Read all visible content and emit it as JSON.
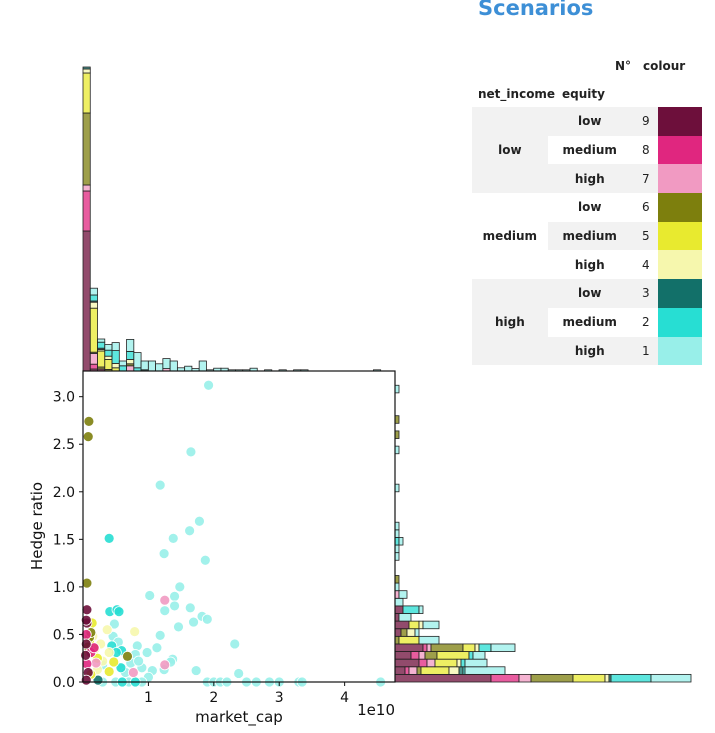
{
  "legend": {
    "title": "Scenarios",
    "header": {
      "n": "N°",
      "colour": "colour",
      "net_income": "net_income",
      "equity": "equity"
    },
    "groups": [
      {
        "net_income": "low",
        "rows": [
          {
            "equity": "low",
            "n": "9",
            "color": "#6d0f3b"
          },
          {
            "equity": "medium",
            "n": "8",
            "color": "#e0267f"
          },
          {
            "equity": "high",
            "n": "7",
            "color": "#f19ac2"
          }
        ]
      },
      {
        "net_income": "medium",
        "rows": [
          {
            "equity": "low",
            "n": "6",
            "color": "#7d7f0d"
          },
          {
            "equity": "medium",
            "n": "5",
            "color": "#e8ea2f"
          },
          {
            "equity": "high",
            "n": "4",
            "color": "#f6f7ad"
          }
        ]
      },
      {
        "net_income": "high",
        "rows": [
          {
            "equity": "low",
            "n": "3",
            "color": "#127069"
          },
          {
            "equity": "medium",
            "n": "2",
            "color": "#27ded3"
          },
          {
            "equity": "high",
            "n": "1",
            "color": "#98efe9"
          }
        ]
      }
    ]
  },
  "chart_data": {
    "type": "scatter",
    "xlabel": "market_cap",
    "ylabel": "Hedge ratio",
    "x_offset_label": "1e10",
    "xlim": [
      0,
      4.77
    ],
    "ylim": [
      0,
      3.27
    ],
    "xticks": [
      "1",
      "2",
      "3",
      "4"
    ],
    "xtick_values": [
      1,
      2,
      3,
      4
    ],
    "yticks": [
      "0.0",
      "0.5",
      "1.0",
      "1.5",
      "2.0",
      "2.5",
      "3.0"
    ],
    "ytick_values": [
      0,
      0.5,
      1,
      1.5,
      2,
      2.5,
      3
    ],
    "series_order": [
      "9",
      "8",
      "7",
      "6",
      "5",
      "4",
      "3",
      "2",
      "1"
    ],
    "points": {
      "1": [
        [
          1.92,
          3.12
        ],
        [
          1.65,
          2.42
        ],
        [
          1.18,
          2.07
        ],
        [
          1.78,
          1.69
        ],
        [
          1.63,
          1.59
        ],
        [
          1.38,
          1.51
        ],
        [
          1.24,
          1.35
        ],
        [
          1.87,
          1.28
        ],
        [
          1.48,
          1.0
        ],
        [
          1.02,
          0.91
        ],
        [
          1.4,
          0.9
        ],
        [
          1.4,
          0.8
        ],
        [
          1.64,
          0.78
        ],
        [
          1.25,
          0.75
        ],
        [
          1.82,
          0.69
        ],
        [
          1.9,
          0.66
        ],
        [
          1.69,
          0.63
        ],
        [
          1.46,
          0.58
        ],
        [
          1.18,
          0.49
        ],
        [
          2.32,
          0.4
        ],
        [
          1.13,
          0.36
        ],
        [
          1.37,
          0.24
        ],
        [
          1.34,
          0.21
        ],
        [
          1.73,
          0.12
        ],
        [
          2.38,
          0.09
        ],
        [
          1.24,
          0.13
        ],
        [
          1.06,
          0.12
        ],
        [
          0.98,
          0.31
        ],
        [
          0.83,
          0.38
        ],
        [
          0.8,
          0.29
        ],
        [
          0.73,
          0.2
        ],
        [
          0.48,
          0.61
        ],
        [
          0.46,
          0.48
        ],
        [
          0.54,
          0.42
        ],
        [
          0.9,
          0.15
        ],
        [
          1.0,
          0.05
        ],
        [
          0.6,
          0.14
        ],
        [
          0.85,
          0.22
        ],
        [
          0.65,
          0.1
        ],
        [
          0.3,
          0.18
        ],
        [
          1.9,
          0
        ],
        [
          2.0,
          0
        ],
        [
          2.1,
          0
        ],
        [
          2.2,
          0
        ],
        [
          2.5,
          0
        ],
        [
          2.65,
          0
        ],
        [
          2.85,
          0
        ],
        [
          3.0,
          0
        ],
        [
          3.3,
          0
        ],
        [
          3.35,
          0
        ],
        [
          4.55,
          0
        ],
        [
          0.3,
          0
        ],
        [
          0.5,
          0
        ],
        [
          0.7,
          0
        ],
        [
          0.9,
          0
        ]
      ],
      "2": [
        [
          0.4,
          1.51
        ],
        [
          0.41,
          0.74
        ],
        [
          0.52,
          0.76
        ],
        [
          0.55,
          0.74
        ],
        [
          0.44,
          0.38
        ],
        [
          0.59,
          0.33
        ],
        [
          0.51,
          0.31
        ],
        [
          0.58,
          0.15
        ],
        [
          0.8,
          0
        ],
        [
          0.6,
          0
        ]
      ],
      "3": [
        [
          0.23,
          0.02
        ]
      ],
      "4": [
        [
          0.37,
          0.55
        ],
        [
          0.79,
          0.53
        ],
        [
          0.4,
          0.31
        ],
        [
          0.22,
          0.13
        ],
        [
          0.27,
          0.4
        ],
        [
          0.15,
          0.48
        ],
        [
          0.3,
          0.22
        ]
      ],
      "5": [
        [
          0.14,
          0.62
        ],
        [
          0.09,
          0.31
        ],
        [
          0.47,
          0.21
        ],
        [
          0.4,
          0.11
        ],
        [
          0.22,
          0.25
        ],
        [
          0.1,
          0.42
        ],
        [
          0.18,
          0.35
        ],
        [
          0.12,
          0.08
        ]
      ],
      "6": [
        [
          0.09,
          2.74
        ],
        [
          0.08,
          2.58
        ],
        [
          0.06,
          1.04
        ],
        [
          0.1,
          0.47
        ],
        [
          0.08,
          0.37
        ],
        [
          0.68,
          0.27
        ],
        [
          0.12,
          0.52
        ]
      ],
      "7": [
        [
          1.25,
          0.86
        ],
        [
          1.25,
          0.18
        ],
        [
          0.77,
          0.1
        ],
        [
          0.2,
          0.2
        ]
      ],
      "8": [
        [
          0.06,
          0.19
        ],
        [
          0.12,
          0.31
        ],
        [
          0.17,
          0.36
        ],
        [
          0.05,
          0.5
        ]
      ],
      "9": [
        [
          0.06,
          0.76
        ],
        [
          0.06,
          0.62
        ],
        [
          0.08,
          0.1
        ],
        [
          0.05,
          0.65
        ],
        [
          0.05,
          0.4
        ],
        [
          0.05,
          0.02
        ],
        [
          0.04,
          0.28
        ]
      ]
    },
    "top_histogram": {
      "bin_width": 0.111,
      "counts_by_bin": [
        [
          35,
          10,
          1.5,
          18,
          10,
          1,
          0.5,
          0,
          0
        ],
        [
          0.5,
          1.2,
          2.7,
          0.3,
          11,
          1.5,
          0.3,
          1.5,
          1.7
        ],
        [
          0.5,
          0,
          0,
          0.5,
          4,
          0.4,
          0.3,
          1.5,
          0.8
        ],
        [
          0,
          0,
          0,
          0.4,
          2.5,
          0.8,
          0,
          1.5,
          1.4
        ],
        [
          0,
          0,
          0,
          0,
          0.8,
          1.1,
          0,
          3.2,
          2
        ],
        [
          0,
          0,
          0,
          0,
          0,
          0,
          0,
          1.3,
          1.2
        ],
        [
          0,
          0,
          1.3,
          0.5,
          0,
          1.1,
          0,
          2,
          3
        ],
        [
          0,
          0,
          0,
          0,
          0,
          0,
          0,
          0.8,
          3.8
        ],
        [
          0,
          0,
          0,
          0,
          0,
          0,
          0.3,
          0,
          2.2
        ],
        [
          0,
          0,
          0,
          0,
          0,
          0,
          0,
          0,
          2.5
        ],
        [
          0,
          0,
          0,
          0,
          0,
          0,
          0,
          0,
          1.8
        ],
        [
          0,
          0,
          0.6,
          0,
          0,
          0,
          0,
          0,
          2.5
        ],
        [
          0,
          0,
          0,
          0,
          0,
          0,
          0,
          0,
          2.5
        ],
        [
          0,
          0,
          0,
          0,
          0,
          0,
          0,
          0,
          0.8
        ],
        [
          0,
          0,
          0,
          0,
          0,
          0,
          0,
          0,
          1.2
        ],
        [
          0,
          0,
          0,
          0,
          0,
          0,
          0,
          0,
          0.6
        ],
        [
          0,
          0,
          0,
          0,
          0,
          0,
          0,
          0,
          2.5
        ],
        [
          0,
          0,
          0,
          0,
          0,
          0,
          0,
          0,
          0.3
        ],
        [
          0,
          0,
          0,
          0,
          0,
          0,
          0,
          0,
          0.7
        ],
        [
          0,
          0,
          0,
          0,
          0,
          0,
          0,
          0,
          0.7
        ],
        [
          0,
          0,
          0,
          0,
          0,
          0,
          0,
          0,
          0.3
        ],
        [
          0,
          0,
          0,
          0,
          0,
          0,
          0,
          0,
          0.3
        ],
        [
          0,
          0,
          0,
          0,
          0,
          0,
          0,
          0,
          0.3
        ],
        [
          0,
          0,
          0,
          0,
          0,
          0,
          0,
          0,
          0.7
        ],
        [
          0,
          0,
          0,
          0,
          0,
          0,
          0,
          0,
          0
        ],
        [
          0,
          0,
          0,
          0,
          0,
          0,
          0,
          0,
          0.3
        ],
        [
          0,
          0,
          0,
          0,
          0,
          0,
          0,
          0,
          0
        ],
        [
          0,
          0,
          0,
          0,
          0,
          0,
          0,
          0,
          0.3
        ],
        [
          0,
          0,
          0,
          0,
          0,
          0,
          0,
          0,
          0
        ],
        [
          0,
          0,
          0,
          0,
          0,
          0,
          0,
          0,
          0.3
        ],
        [
          0,
          0,
          0,
          0,
          0,
          0,
          0,
          0,
          0.3
        ],
        [
          0,
          0,
          0,
          0,
          0,
          0,
          0,
          0,
          0
        ],
        [
          0,
          0,
          0,
          0,
          0,
          0,
          0,
          0,
          0
        ],
        [
          0,
          0,
          0,
          0,
          0,
          0,
          0,
          0,
          0
        ],
        [
          0,
          0,
          0,
          0,
          0,
          0,
          0,
          0,
          0
        ],
        [
          0,
          0,
          0,
          0,
          0,
          0,
          0,
          0,
          0
        ],
        [
          0,
          0,
          0,
          0,
          0,
          0,
          0,
          0,
          0
        ],
        [
          0,
          0,
          0,
          0,
          0,
          0,
          0,
          0,
          0
        ],
        [
          0,
          0,
          0,
          0,
          0,
          0,
          0,
          0,
          0
        ],
        [
          0,
          0,
          0,
          0,
          0,
          0,
          0,
          0,
          0
        ],
        [
          0,
          0,
          0,
          0,
          0,
          0,
          0,
          0,
          0.3
        ]
      ]
    },
    "right_histogram": {
      "bin_width": 0.08,
      "counts_by_bin": [
        [
          24,
          7,
          3,
          10.5,
          8,
          1,
          0.5,
          10,
          10
        ],
        [
          2.5,
          1,
          2,
          1,
          7,
          2.5,
          1,
          0.5,
          10
        ],
        [
          6,
          2,
          2,
          0,
          5.5,
          1,
          0,
          1,
          5.5
        ],
        [
          4,
          2,
          1.5,
          3,
          8,
          0,
          0,
          1,
          3
        ],
        [
          7,
          1,
          1,
          8,
          3,
          1,
          0,
          3,
          6
        ],
        [
          0,
          0,
          0,
          1,
          5,
          0,
          0,
          0,
          5
        ],
        [
          1.5,
          0,
          0,
          1.5,
          0,
          2,
          0,
          0,
          1
        ],
        [
          3.5,
          0,
          0,
          0,
          2.5,
          1,
          0,
          0,
          4
        ],
        [
          1,
          0,
          0,
          0,
          0,
          0,
          0,
          0,
          3
        ],
        [
          2,
          0,
          0,
          0,
          0,
          0,
          0,
          4,
          1
        ],
        [
          0,
          0,
          0,
          0,
          0,
          0,
          0,
          0,
          2
        ],
        [
          0,
          0,
          1,
          0,
          0,
          0,
          0,
          0,
          2
        ],
        [
          0,
          0,
          0,
          0,
          0,
          0,
          0,
          0,
          1
        ],
        [
          0,
          0,
          0,
          1,
          0,
          0,
          0,
          0,
          0
        ],
        [
          0,
          0,
          0,
          0,
          0,
          0,
          0,
          0,
          0
        ],
        [
          0,
          0,
          0,
          0,
          0,
          0,
          0,
          0,
          0
        ],
        [
          0,
          0,
          0,
          0,
          0,
          0,
          0,
          0,
          1
        ],
        [
          0,
          0,
          0,
          0,
          0,
          0,
          0,
          0,
          1
        ],
        [
          0,
          0,
          0,
          0,
          0,
          0,
          0,
          1,
          1
        ],
        [
          0,
          0,
          0,
          0,
          0,
          0,
          0,
          0,
          1
        ],
        [
          0,
          0,
          0,
          0,
          0,
          0,
          0,
          0,
          1
        ],
        [
          0,
          0,
          0,
          0,
          0,
          0,
          0,
          0,
          0
        ],
        [
          0,
          0,
          0,
          0,
          0,
          0,
          0,
          0,
          0
        ],
        [
          0,
          0,
          0,
          0,
          0,
          0,
          0,
          0,
          0
        ],
        [
          0,
          0,
          0,
          0,
          0,
          0,
          0,
          0,
          0
        ],
        [
          0,
          0,
          0,
          0,
          0,
          0,
          0,
          0,
          1
        ],
        [
          0,
          0,
          0,
          0,
          0,
          0,
          0,
          0,
          0
        ],
        [
          0,
          0,
          0,
          0,
          0,
          0,
          0,
          0,
          0
        ],
        [
          0,
          0,
          0,
          0,
          0,
          0,
          0,
          0,
          0
        ],
        [
          0,
          0,
          0,
          0,
          0,
          0,
          0,
          0,
          0
        ],
        [
          0,
          0,
          0,
          0,
          0,
          0,
          0,
          0,
          1
        ],
        [
          0,
          0,
          0,
          0,
          0,
          0,
          0,
          0,
          0
        ],
        [
          0,
          0,
          0,
          1,
          0,
          0,
          0,
          0,
          0
        ],
        [
          0,
          0,
          0,
          0,
          0,
          0,
          0,
          0,
          0
        ],
        [
          0,
          0,
          0,
          1,
          0,
          0,
          0,
          0,
          0
        ],
        [
          0,
          0,
          0,
          0,
          0,
          0,
          0,
          0,
          0
        ],
        [
          0,
          0,
          0,
          0,
          0,
          0,
          0,
          0,
          0
        ],
        [
          0,
          0,
          0,
          0,
          0,
          0,
          0,
          0,
          0
        ],
        [
          0,
          0,
          0,
          0,
          0,
          0,
          0,
          0,
          1
        ]
      ]
    },
    "colors": {
      "9": "#6d0f3b",
      "8": "#e0267f",
      "7": "#f19ac2",
      "6": "#7d7f0d",
      "5": "#e8ea2f",
      "4": "#f6f7ad",
      "3": "#127069",
      "2": "#27ded3",
      "1": "#98efe9"
    }
  }
}
